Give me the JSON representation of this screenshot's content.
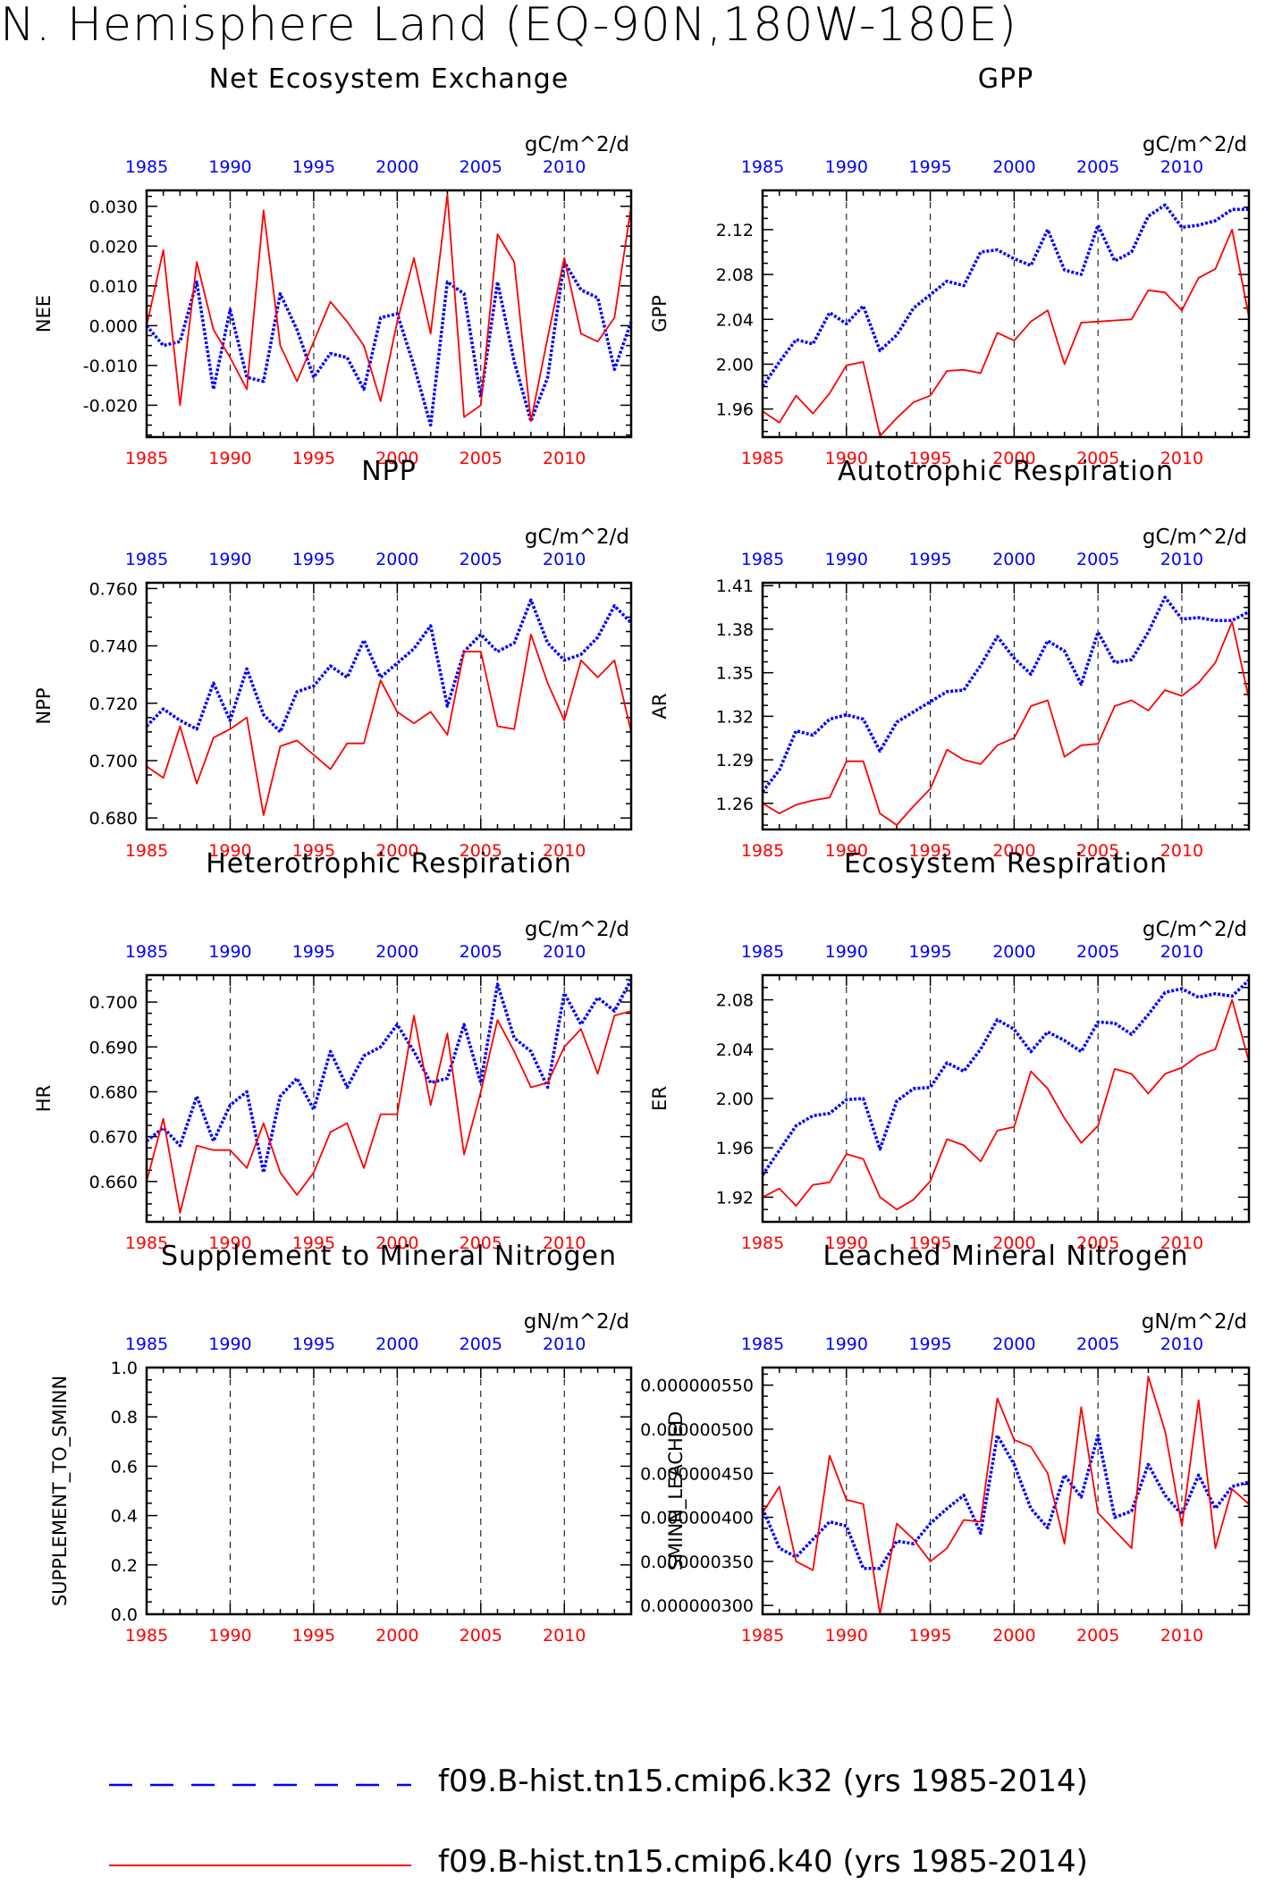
{
  "figure": {
    "title": "N. Hemisphere Land (EQ-90N,180W-180E)",
    "colors": {
      "case1": "#0000ff",
      "case2": "#ff0000",
      "axis": "#000000",
      "grid": "#000000"
    }
  },
  "legend": [
    {
      "label": "f09.B-hist.tn15.cmip6.k32 (yrs 1985-2014)",
      "color": "#0000ff",
      "style": "dashed"
    },
    {
      "label": "f09.B-hist.tn15.cmip6.k40 (yrs 1985-2014)",
      "color": "#ff0000",
      "style": "solid"
    }
  ],
  "chart_data": [
    {
      "type": "line",
      "title": "Net Ecosystem Exchange",
      "ylabel": "NEE",
      "units": "gC/m^2/d",
      "x": [
        1985,
        1986,
        1987,
        1988,
        1989,
        1990,
        1991,
        1992,
        1993,
        1994,
        1995,
        1996,
        1997,
        1998,
        1999,
        2000,
        2001,
        2002,
        2003,
        2004,
        2005,
        2006,
        2007,
        2008,
        2009,
        2010,
        2011,
        2012,
        2013,
        2014
      ],
      "xlim": [
        1985,
        2014
      ],
      "xticks": [
        "1985",
        "1990",
        "1995",
        "2000",
        "2005",
        "2010"
      ],
      "ylim": [
        -0.028,
        0.034
      ],
      "yticks": [
        -0.02,
        -0.01,
        0.0,
        0.01,
        0.02,
        0.03
      ],
      "ytick_labels": [
        "-0.020",
        "-0.010",
        "0.000",
        "0.010",
        "0.020",
        "0.030"
      ],
      "grid": "dashed vertical at 1990, 1995, 2000, 2005, 2010",
      "series": [
        {
          "color": "#0000ff",
          "style": "dashed",
          "values": [
            0.0,
            -0.005,
            -0.004,
            0.011,
            -0.016,
            0.004,
            -0.013,
            -0.014,
            0.008,
            -0.001,
            -0.013,
            -0.007,
            -0.008,
            -0.016,
            0.002,
            0.003,
            -0.01,
            -0.025,
            0.011,
            0.008,
            -0.018,
            0.011,
            -0.009,
            -0.024,
            -0.013,
            0.016,
            0.009,
            0.007,
            -0.011,
            0.001
          ]
        },
        {
          "color": "#ff0000",
          "style": "solid",
          "values": [
            0.0,
            0.019,
            -0.02,
            0.016,
            -0.001,
            -0.008,
            -0.016,
            0.029,
            -0.005,
            -0.014,
            -0.004,
            0.006,
            0.001,
            -0.005,
            -0.019,
            0.001,
            0.017,
            -0.002,
            0.033,
            -0.023,
            -0.02,
            0.023,
            0.016,
            -0.024,
            -0.003,
            0.017,
            -0.002,
            -0.004,
            0.002,
            0.03
          ]
        }
      ]
    },
    {
      "type": "line",
      "title": "GPP",
      "ylabel": "GPP",
      "units": "gC/m^2/d",
      "x": [
        1985,
        1986,
        1987,
        1988,
        1989,
        1990,
        1991,
        1992,
        1993,
        1994,
        1995,
        1996,
        1997,
        1998,
        1999,
        2000,
        2001,
        2002,
        2003,
        2004,
        2005,
        2006,
        2007,
        2008,
        2009,
        2010,
        2011,
        2012,
        2013,
        2014
      ],
      "xlim": [
        1985,
        2014
      ],
      "xticks": [
        "1985",
        "1990",
        "1995",
        "2000",
        "2005",
        "2010"
      ],
      "ylim": [
        1.935,
        2.155
      ],
      "yticks": [
        1.96,
        2.0,
        2.04,
        2.08,
        2.12
      ],
      "ytick_labels": [
        "1.96",
        "2.00",
        "2.04",
        "2.08",
        "2.12"
      ],
      "grid": "dashed vertical at 1990, 1995, 2000, 2005, 2010",
      "series": [
        {
          "color": "#0000ff",
          "style": "dashed",
          "values": [
            1.98,
            2.002,
            2.022,
            2.018,
            2.046,
            2.036,
            2.052,
            2.012,
            2.026,
            2.05,
            2.062,
            2.074,
            2.07,
            2.1,
            2.102,
            2.094,
            2.088,
            2.12,
            2.084,
            2.08,
            2.124,
            2.092,
            2.1,
            2.132,
            2.142,
            2.122,
            2.124,
            2.128,
            2.138,
            2.138
          ]
        },
        {
          "color": "#ff0000",
          "style": "solid",
          "values": [
            1.958,
            1.948,
            1.972,
            1.956,
            1.974,
            1.999,
            2.002,
            1.936,
            1.952,
            1.966,
            1.972,
            1.994,
            1.995,
            1.992,
            2.028,
            2.021,
            2.038,
            2.048,
            2.0,
            2.037,
            2.038,
            2.039,
            2.04,
            2.066,
            2.064,
            2.048,
            2.077,
            2.085,
            2.12,
            2.042
          ]
        }
      ]
    },
    {
      "type": "line",
      "title": "NPP",
      "ylabel": "NPP",
      "units": "gC/m^2/d",
      "x": [
        1985,
        1986,
        1987,
        1988,
        1989,
        1990,
        1991,
        1992,
        1993,
        1994,
        1995,
        1996,
        1997,
        1998,
        1999,
        2000,
        2001,
        2002,
        2003,
        2004,
        2005,
        2006,
        2007,
        2008,
        2009,
        2010,
        2011,
        2012,
        2013,
        2014
      ],
      "xlim": [
        1985,
        2014
      ],
      "xticks": [
        "1985",
        "1990",
        "1995",
        "2000",
        "2005",
        "2010"
      ],
      "ylim": [
        0.676,
        0.762
      ],
      "yticks": [
        0.68,
        0.7,
        0.72,
        0.74,
        0.76
      ],
      "ytick_labels": [
        "0.680",
        "0.700",
        "0.720",
        "0.740",
        "0.760"
      ],
      "grid": "dashed vertical at 1990, 1995, 2000, 2005, 2010",
      "series": [
        {
          "color": "#0000ff",
          "style": "dashed",
          "values": [
            0.712,
            0.718,
            0.714,
            0.711,
            0.727,
            0.714,
            0.732,
            0.716,
            0.71,
            0.724,
            0.726,
            0.733,
            0.729,
            0.742,
            0.729,
            0.734,
            0.739,
            0.747,
            0.719,
            0.738,
            0.744,
            0.738,
            0.741,
            0.756,
            0.741,
            0.735,
            0.737,
            0.743,
            0.754,
            0.748
          ]
        },
        {
          "color": "#ff0000",
          "style": "solid",
          "values": [
            0.698,
            0.694,
            0.712,
            0.692,
            0.708,
            0.711,
            0.715,
            0.681,
            0.705,
            0.707,
            0.702,
            0.697,
            0.706,
            0.706,
            0.728,
            0.717,
            0.713,
            0.717,
            0.709,
            0.738,
            0.738,
            0.712,
            0.711,
            0.744,
            0.727,
            0.714,
            0.735,
            0.729,
            0.735,
            0.71
          ]
        }
      ]
    },
    {
      "type": "line",
      "title": "Autotrophic Respiration",
      "ylabel": "AR",
      "units": "gC/m^2/d",
      "x": [
        1985,
        1986,
        1987,
        1988,
        1989,
        1990,
        1991,
        1992,
        1993,
        1994,
        1995,
        1996,
        1997,
        1998,
        1999,
        2000,
        2001,
        2002,
        2003,
        2004,
        2005,
        2006,
        2007,
        2008,
        2009,
        2010,
        2011,
        2012,
        2013,
        2014
      ],
      "xlim": [
        1985,
        2014
      ],
      "xticks": [
        "1985",
        "1990",
        "1995",
        "2000",
        "2005",
        "2010"
      ],
      "ylim": [
        1.242,
        1.412
      ],
      "yticks": [
        1.26,
        1.29,
        1.32,
        1.35,
        1.38,
        1.41
      ],
      "ytick_labels": [
        "1.26",
        "1.29",
        "1.32",
        "1.35",
        "1.38",
        "1.41"
      ],
      "grid": "dashed vertical at 1990, 1995, 2000, 2005, 2010",
      "series": [
        {
          "color": "#0000ff",
          "style": "dashed",
          "values": [
            1.268,
            1.283,
            1.31,
            1.307,
            1.318,
            1.321,
            1.318,
            1.296,
            1.316,
            1.323,
            1.33,
            1.337,
            1.338,
            1.355,
            1.375,
            1.36,
            1.349,
            1.372,
            1.365,
            1.342,
            1.378,
            1.357,
            1.359,
            1.378,
            1.402,
            1.387,
            1.388,
            1.386,
            1.386,
            1.392
          ]
        },
        {
          "color": "#ff0000",
          "style": "solid",
          "values": [
            1.26,
            1.253,
            1.259,
            1.262,
            1.264,
            1.289,
            1.289,
            1.253,
            1.245,
            1.258,
            1.27,
            1.297,
            1.29,
            1.287,
            1.3,
            1.305,
            1.327,
            1.331,
            1.292,
            1.3,
            1.301,
            1.327,
            1.331,
            1.324,
            1.338,
            1.334,
            1.343,
            1.357,
            1.385,
            1.332
          ]
        }
      ]
    },
    {
      "type": "line",
      "title": "Heterotrophic Respiration",
      "ylabel": "HR",
      "units": "gC/m^2/d",
      "x": [
        1985,
        1986,
        1987,
        1988,
        1989,
        1990,
        1991,
        1992,
        1993,
        1994,
        1995,
        1996,
        1997,
        1998,
        1999,
        2000,
        2001,
        2002,
        2003,
        2004,
        2005,
        2006,
        2007,
        2008,
        2009,
        2010,
        2011,
        2012,
        2013,
        2014
      ],
      "xlim": [
        1985,
        2014
      ],
      "xticks": [
        "1985",
        "1990",
        "1995",
        "2000",
        "2005",
        "2010"
      ],
      "ylim": [
        0.651,
        0.706
      ],
      "yticks": [
        0.66,
        0.67,
        0.68,
        0.69,
        0.7
      ],
      "ytick_labels": [
        "0.660",
        "0.670",
        "0.680",
        "0.690",
        "0.700"
      ],
      "grid": "dashed vertical at 1990, 1995, 2000, 2005, 2010",
      "series": [
        {
          "color": "#0000ff",
          "style": "dashed",
          "values": [
            0.669,
            0.672,
            0.668,
            0.679,
            0.669,
            0.677,
            0.68,
            0.662,
            0.679,
            0.683,
            0.676,
            0.689,
            0.681,
            0.688,
            0.69,
            0.695,
            0.689,
            0.682,
            0.683,
            0.695,
            0.682,
            0.704,
            0.692,
            0.689,
            0.681,
            0.702,
            0.695,
            0.701,
            0.698,
            0.705
          ]
        },
        {
          "color": "#ff0000",
          "style": "solid",
          "values": [
            0.66,
            0.674,
            0.653,
            0.668,
            0.667,
            0.667,
            0.663,
            0.673,
            0.662,
            0.657,
            0.662,
            0.671,
            0.673,
            0.663,
            0.675,
            0.675,
            0.697,
            0.677,
            0.693,
            0.666,
            0.68,
            0.696,
            0.689,
            0.681,
            0.682,
            0.69,
            0.694,
            0.684,
            0.697,
            0.698
          ]
        }
      ]
    },
    {
      "type": "line",
      "title": "Ecosystem Respiration",
      "ylabel": "ER",
      "units": "gC/m^2/d",
      "x": [
        1985,
        1986,
        1987,
        1988,
        1989,
        1990,
        1991,
        1992,
        1993,
        1994,
        1995,
        1996,
        1997,
        1998,
        1999,
        2000,
        2001,
        2002,
        2003,
        2004,
        2005,
        2006,
        2007,
        2008,
        2009,
        2010,
        2011,
        2012,
        2013,
        2014
      ],
      "xlim": [
        1985,
        2014
      ],
      "xticks": [
        "1985",
        "1990",
        "1995",
        "2000",
        "2005",
        "2010"
      ],
      "ylim": [
        1.9,
        2.1
      ],
      "yticks": [
        1.92,
        1.96,
        2.0,
        2.04,
        2.08
      ],
      "ytick_labels": [
        "1.92",
        "1.96",
        "2.00",
        "2.04",
        "2.08"
      ],
      "grid": "dashed vertical at 1990, 1995, 2000, 2005, 2010",
      "series": [
        {
          "color": "#0000ff",
          "style": "dashed",
          "values": [
            1.938,
            1.958,
            1.978,
            1.986,
            1.988,
            1.999,
            2.0,
            1.959,
            1.998,
            2.008,
            2.009,
            2.029,
            2.022,
            2.04,
            2.064,
            2.056,
            2.038,
            2.054,
            2.047,
            2.038,
            2.062,
            2.061,
            2.052,
            2.068,
            2.086,
            2.089,
            2.082,
            2.085,
            2.083,
            2.096
          ]
        },
        {
          "color": "#ff0000",
          "style": "solid",
          "values": [
            1.92,
            1.927,
            1.913,
            1.93,
            1.932,
            1.955,
            1.951,
            1.92,
            1.91,
            1.918,
            1.933,
            1.967,
            1.962,
            1.949,
            1.974,
            1.977,
            2.022,
            2.008,
            1.984,
            1.964,
            1.978,
            2.024,
            2.02,
            2.004,
            2.02,
            2.025,
            2.035,
            2.04,
            2.08,
            2.03
          ]
        }
      ]
    },
    {
      "type": "line",
      "title": "Supplement to Mineral Nitrogen",
      "ylabel": "SUPPLEMENT_TO_SMINN",
      "units": "gN/m^2/d",
      "x": [
        1985,
        1986,
        1987,
        1988,
        1989,
        1990,
        1991,
        1992,
        1993,
        1994,
        1995,
        1996,
        1997,
        1998,
        1999,
        2000,
        2001,
        2002,
        2003,
        2004,
        2005,
        2006,
        2007,
        2008,
        2009,
        2010,
        2011,
        2012,
        2013,
        2014
      ],
      "xlim": [
        1985,
        2014
      ],
      "xticks": [
        "1985",
        "1990",
        "1995",
        "2000",
        "2005",
        "2010"
      ],
      "ylim": [
        0.0,
        1.0
      ],
      "yticks": [
        0.0,
        0.2,
        0.4,
        0.6,
        0.8,
        1.0
      ],
      "ytick_labels": [
        "0.0",
        "0.2",
        "0.4",
        "0.6",
        "0.8",
        "1.0"
      ],
      "grid": "dashed vertical at 1990, 1995, 2000, 2005, 2010",
      "series": []
    },
    {
      "type": "line",
      "title": "Leached Mineral Nitrogen",
      "ylabel": "SMINN_LEACHED",
      "units": "gN/m^2/d",
      "x": [
        1985,
        1986,
        1987,
        1988,
        1989,
        1990,
        1991,
        1992,
        1993,
        1994,
        1995,
        1996,
        1997,
        1998,
        1999,
        2000,
        2001,
        2002,
        2003,
        2004,
        2005,
        2006,
        2007,
        2008,
        2009,
        2010,
        2011,
        2012,
        2013,
        2014
      ],
      "xlim": [
        1985,
        2014
      ],
      "xticks": [
        "1985",
        "1990",
        "1995",
        "2000",
        "2005",
        "2010"
      ],
      "ylim": [
        2.9e-07,
        5.7e-07
      ],
      "yticks": [
        3e-07,
        3.5e-07,
        4e-07,
        4.5e-07,
        5e-07,
        5.5e-07
      ],
      "ytick_labels": [
        "0.000000300",
        "0.000000350",
        "0.000000400",
        "0.000000450",
        "0.000000500",
        "0.000000550"
      ],
      "grid": "dashed vertical at 1990, 1995, 2000, 2005, 2010",
      "series": [
        {
          "color": "#0000ff",
          "style": "dashed",
          "values": [
            4.1e-07,
            3.65e-07,
            3.55e-07,
            3.75e-07,
            3.95e-07,
            3.9e-07,
            3.42e-07,
            3.42e-07,
            3.73e-07,
            3.7e-07,
            3.93e-07,
            4.1e-07,
            4.25e-07,
            3.82e-07,
            4.93e-07,
            4.6e-07,
            4.1e-07,
            3.88e-07,
            4.48e-07,
            4.23e-07,
            4.93e-07,
            4e-07,
            4.07e-07,
            4.6e-07,
            4.25e-07,
            4.03e-07,
            4.48e-07,
            4.1e-07,
            4.35e-07,
            4.4e-07
          ]
        },
        {
          "color": "#ff0000",
          "style": "solid",
          "values": [
            4.05e-07,
            4.35e-07,
            3.5e-07,
            3.4e-07,
            4.7e-07,
            4.2e-07,
            4.15e-07,
            2.9e-07,
            3.93e-07,
            3.75e-07,
            3.5e-07,
            3.65e-07,
            3.97e-07,
            3.95e-07,
            5.35e-07,
            4.88e-07,
            4.8e-07,
            4.5e-07,
            3.7e-07,
            5.25e-07,
            4.05e-07,
            3.85e-07,
            3.65e-07,
            5.6e-07,
            4.98e-07,
            3.9e-07,
            5.33e-07,
            3.65e-07,
            4.32e-07,
            4.15e-07
          ]
        }
      ]
    }
  ]
}
